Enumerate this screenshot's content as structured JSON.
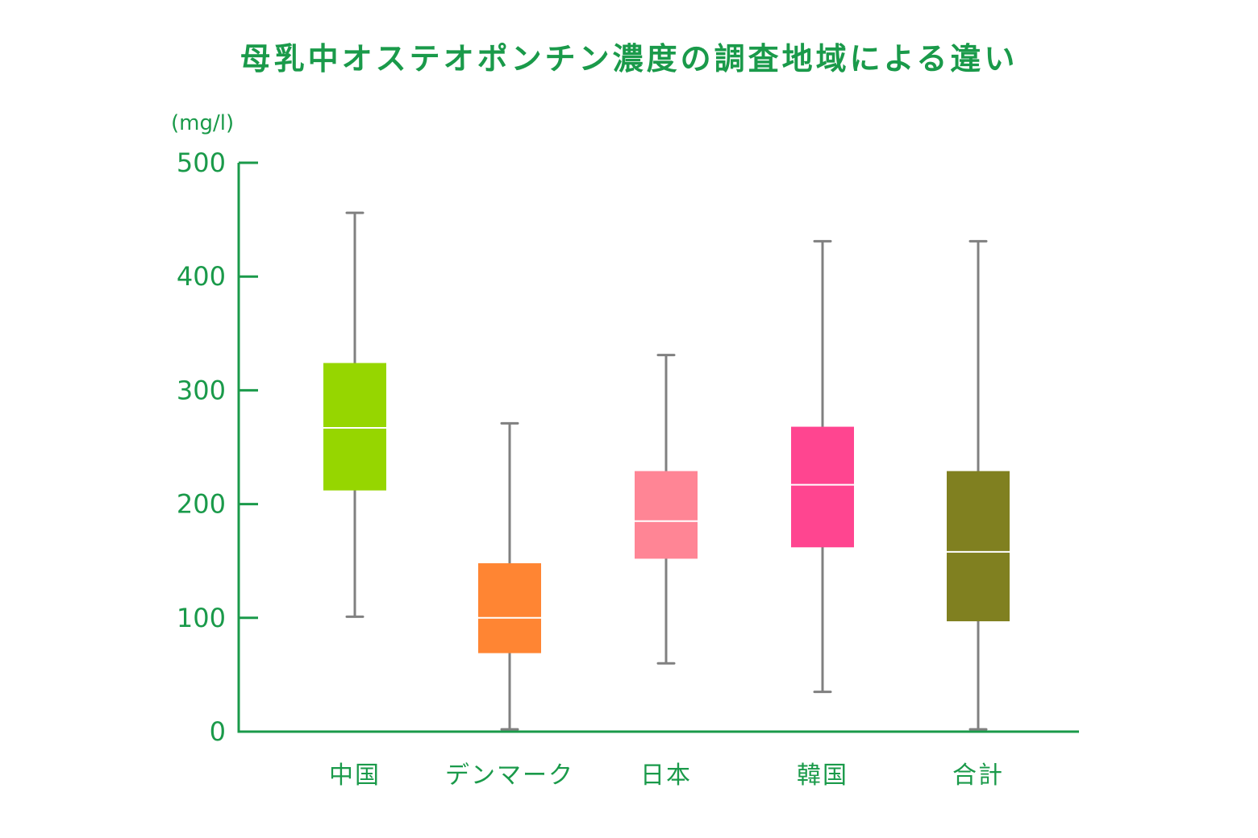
{
  "chart_data": {
    "type": "box",
    "title": "母乳中オステオポンチン濃度の調査地域による違い",
    "unit_label": "(mg/l)",
    "xlabel": "",
    "ylabel": "",
    "ylim": [
      0,
      500
    ],
    "yticks": [
      0,
      100,
      200,
      300,
      400,
      500
    ],
    "grid": false,
    "legend": "none",
    "axis_color": "#1a9a4a",
    "whisker_color": "#808080",
    "median_color": "#ffffff",
    "categories": [
      "中国",
      "デンマーク",
      "日本",
      "韓国",
      "合計"
    ],
    "boxes": [
      {
        "category": "中国",
        "min": 101,
        "q1": 212,
        "median": 267,
        "q3": 324,
        "max": 456,
        "color": "#96d600"
      },
      {
        "category": "デンマーク",
        "min": 2,
        "q1": 69,
        "median": 100,
        "q3": 148,
        "max": 271,
        "color": "#ff8533"
      },
      {
        "category": "日本",
        "min": 60,
        "q1": 152,
        "median": 185,
        "q3": 229,
        "max": 331,
        "color": "#ff8595"
      },
      {
        "category": "韓国",
        "min": 35,
        "q1": 162,
        "median": 217,
        "q3": 268,
        "max": 431,
        "color": "#ff4590"
      },
      {
        "category": "合計",
        "min": 2,
        "q1": 97,
        "median": 158,
        "q3": 229,
        "max": 431,
        "color": "#808020"
      }
    ]
  }
}
